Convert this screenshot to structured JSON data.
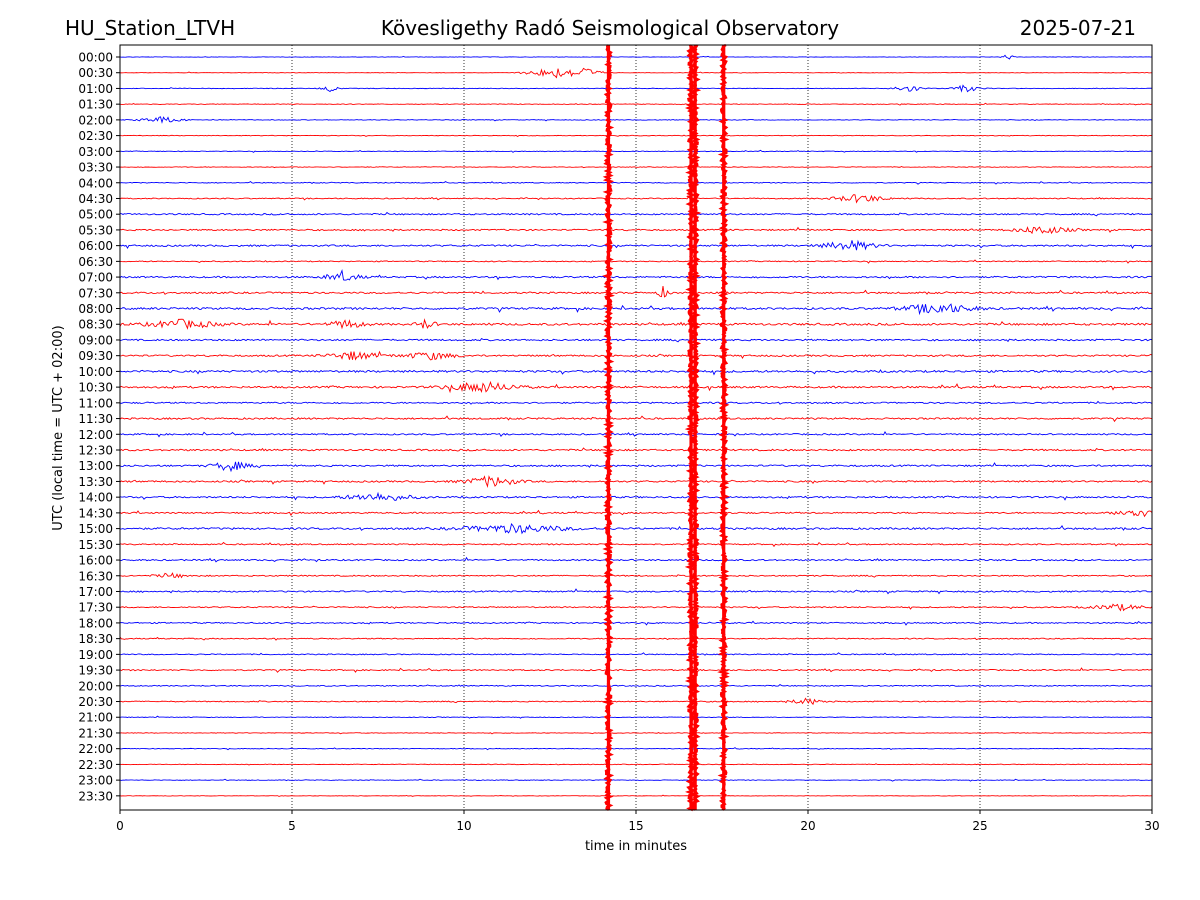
{
  "header": {
    "station": "HU_Station_LTVH",
    "observatory": "Kövesligethy Radó Seismological Observatory",
    "date": "2025-07-21"
  },
  "chart_data": {
    "type": "line",
    "title": "Kövesligethy Radó Seismological Observatory",
    "xlabel": "time in minutes",
    "ylabel": "UTC (local time = UTC + 02:00)",
    "xlim": [
      0,
      30
    ],
    "x_ticks": [
      0,
      5,
      10,
      15,
      20,
      25,
      30
    ],
    "x_tick_labels": [
      "0",
      "5",
      "10",
      "15",
      "20",
      "25",
      "30"
    ],
    "grid": "vertical dotted lines at x ticks",
    "row_labels": [
      "00:00",
      "00:30",
      "01:00",
      "01:30",
      "02:00",
      "02:30",
      "03:00",
      "03:30",
      "04:00",
      "04:30",
      "05:00",
      "05:30",
      "06:00",
      "06:30",
      "07:00",
      "07:30",
      "08:00",
      "08:30",
      "09:00",
      "09:30",
      "10:00",
      "10:30",
      "11:00",
      "11:30",
      "12:00",
      "12:30",
      "13:00",
      "13:30",
      "14:00",
      "14:30",
      "15:00",
      "15:30",
      "16:00",
      "16:30",
      "17:00",
      "17:30",
      "18:00",
      "18:30",
      "19:00",
      "19:30",
      "20:00",
      "20:30",
      "21:00",
      "21:30",
      "22:00",
      "22:30",
      "23:00",
      "23:30"
    ],
    "row_colors": [
      "#0000ff",
      "#ff0000"
    ],
    "row_noise_levels": [
      0.2,
      0.2,
      0.3,
      0.3,
      0.3,
      0.3,
      0.3,
      0.3,
      0.4,
      0.5,
      0.7,
      0.7,
      0.8,
      0.5,
      0.8,
      0.8,
      1.0,
      1.0,
      0.8,
      0.8,
      1.0,
      0.9,
      0.7,
      0.8,
      0.7,
      0.8,
      0.8,
      0.8,
      0.8,
      0.7,
      0.9,
      0.6,
      0.7,
      0.6,
      0.7,
      0.6,
      0.6,
      0.5,
      0.5,
      0.6,
      0.5,
      0.5,
      0.3,
      0.3,
      0.3,
      0.3,
      0.3,
      0.2
    ],
    "events": [
      {
        "row": 0,
        "x": 25.8,
        "amplitude": 1.5,
        "duration": 0.3
      },
      {
        "row": 1,
        "x": 12.6,
        "amplitude": 2.5,
        "duration": 1.5
      },
      {
        "row": 1,
        "x": 13.5,
        "amplitude": 2.0,
        "duration": 1.0
      },
      {
        "row": 2,
        "x": 6.1,
        "amplitude": 1.5,
        "duration": 0.5
      },
      {
        "row": 2,
        "x": 22.9,
        "amplitude": 1.8,
        "duration": 0.8
      },
      {
        "row": 2,
        "x": 24.6,
        "amplitude": 1.6,
        "duration": 0.8
      },
      {
        "row": 4,
        "x": 1.2,
        "amplitude": 1.5,
        "duration": 1.2
      },
      {
        "row": 9,
        "x": 21.5,
        "amplitude": 2.0,
        "duration": 1.5
      },
      {
        "row": 11,
        "x": 26.8,
        "amplitude": 2.0,
        "duration": 1.5
      },
      {
        "row": 12,
        "x": 21.2,
        "amplitude": 2.5,
        "duration": 1.5
      },
      {
        "row": 14,
        "x": 6.5,
        "amplitude": 2.0,
        "duration": 1.0
      },
      {
        "row": 15,
        "x": 15.8,
        "amplitude": 3.0,
        "duration": 0.3
      },
      {
        "row": 16,
        "x": 23.8,
        "amplitude": 2.5,
        "duration": 2.0
      },
      {
        "row": 17,
        "x": 1.8,
        "amplitude": 2.0,
        "duration": 2.0
      },
      {
        "row": 17,
        "x": 6.6,
        "amplitude": 2.0,
        "duration": 1.0
      },
      {
        "row": 17,
        "x": 8.9,
        "amplitude": 2.5,
        "duration": 0.5
      },
      {
        "row": 19,
        "x": 6.8,
        "amplitude": 2.0,
        "duration": 1.5
      },
      {
        "row": 19,
        "x": 9.0,
        "amplitude": 1.8,
        "duration": 1.5
      },
      {
        "row": 21,
        "x": 10.5,
        "amplitude": 2.5,
        "duration": 2.0
      },
      {
        "row": 26,
        "x": 3.2,
        "amplitude": 2.5,
        "duration": 1.0
      },
      {
        "row": 27,
        "x": 10.8,
        "amplitude": 2.5,
        "duration": 1.5
      },
      {
        "row": 28,
        "x": 7.5,
        "amplitude": 1.8,
        "duration": 2.0
      },
      {
        "row": 29,
        "x": 29.5,
        "amplitude": 2.5,
        "duration": 1.0
      },
      {
        "row": 30,
        "x": 11.5,
        "amplitude": 2.0,
        "duration": 3.0
      },
      {
        "row": 33,
        "x": 1.5,
        "amplitude": 1.0,
        "duration": 1.0
      },
      {
        "row": 35,
        "x": 29.0,
        "amplitude": 1.5,
        "duration": 1.5
      },
      {
        "row": 41,
        "x": 20.0,
        "amplitude": 1.5,
        "duration": 1.0
      }
    ],
    "saturation_bands": [
      {
        "x": 14.2,
        "row_start": 0,
        "row_end": 47
      },
      {
        "x": 16.6,
        "row_start": 0,
        "row_end": 47
      },
      {
        "x": 16.72,
        "row_start": 0,
        "row_end": 47
      },
      {
        "x": 17.55,
        "row_start": 0,
        "row_end": 47
      }
    ]
  }
}
